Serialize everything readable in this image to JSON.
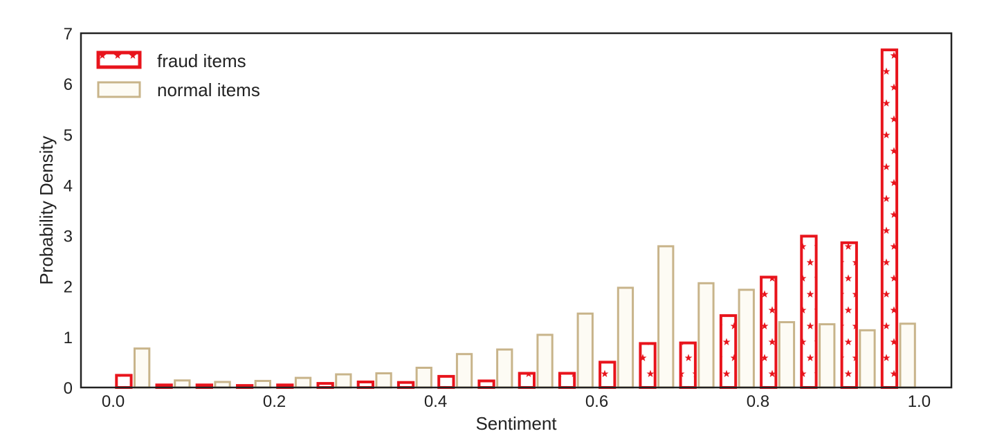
{
  "chart_data": {
    "type": "bar",
    "title": "",
    "xlabel": "Sentiment",
    "ylabel": "Probability Density",
    "xlim": [
      -0.04,
      1.04
    ],
    "ylim": [
      0,
      7
    ],
    "xticks": [
      "0.0",
      "0.2",
      "0.4",
      "0.6",
      "0.8",
      "1.0"
    ],
    "yticks": [
      "0",
      "1",
      "2",
      "3",
      "4",
      "5",
      "6",
      "7"
    ],
    "grid": false,
    "legend_position": "top-left",
    "bin_centers": [
      0.025,
      0.075,
      0.125,
      0.175,
      0.225,
      0.275,
      0.325,
      0.375,
      0.425,
      0.475,
      0.525,
      0.575,
      0.625,
      0.675,
      0.725,
      0.775,
      0.825,
      0.875,
      0.925,
      0.975
    ],
    "series": [
      {
        "name": "fraud items",
        "color": "#e8141c",
        "hatch": "stars",
        "values": [
          0.24,
          0.05,
          0.05,
          0.04,
          0.05,
          0.08,
          0.11,
          0.1,
          0.22,
          0.13,
          0.28,
          0.28,
          0.5,
          0.87,
          0.88,
          1.42,
          2.18,
          2.99,
          2.86,
          6.67
        ]
      },
      {
        "name": "normal items",
        "color": "#c8b48a",
        "fill": "#fdfbf4",
        "values": [
          0.77,
          0.14,
          0.11,
          0.13,
          0.19,
          0.26,
          0.28,
          0.39,
          0.66,
          0.75,
          1.04,
          1.46,
          1.97,
          2.79,
          2.06,
          1.93,
          1.29,
          1.25,
          1.13,
          1.26
        ]
      }
    ]
  }
}
